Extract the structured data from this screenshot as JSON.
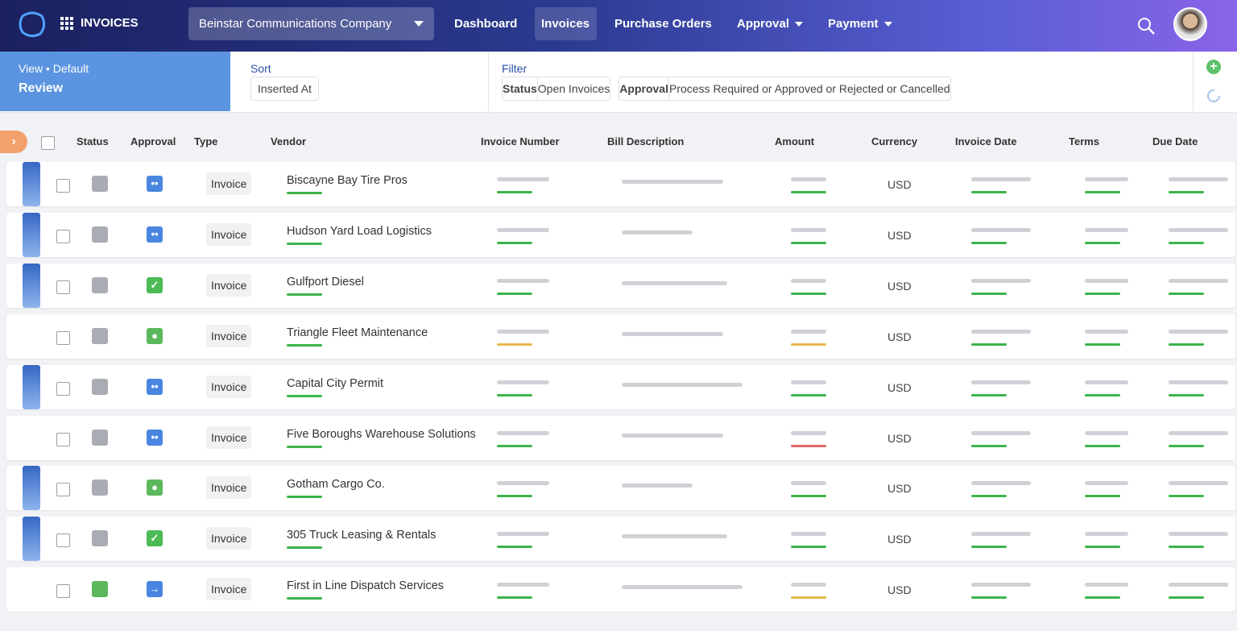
{
  "nav": {
    "app_title": "INVOICES",
    "company": "Beinstar Communications Company",
    "items": [
      "Dashboard",
      "Invoices",
      "Purchase Orders",
      "Approval",
      "Payment"
    ]
  },
  "toolbar": {
    "view_label": "View • Default",
    "view_name": "Review",
    "sort_label": "Sort",
    "sort_value": "Inserted At",
    "filter_label": "Filter",
    "filters": [
      {
        "name": "Status",
        "value": "Open Invoices"
      },
      {
        "name": "Approval",
        "value": "Process Required or Approved or Rejected or Cancelled"
      }
    ]
  },
  "table": {
    "columns": [
      "Status",
      "Approval",
      "Type",
      "Vendor",
      "Invoice Number",
      "Bill Description",
      "Amount",
      "Currency",
      "Invoice Date",
      "Terms",
      "Due Date"
    ],
    "rows": [
      {
        "type": "Invoice",
        "vendor": "Biscayne Bay Tire Pros",
        "currency": "USD"
      },
      {
        "type": "Invoice",
        "vendor": "Hudson Yard Load Logistics",
        "currency": "USD"
      },
      {
        "type": "Invoice",
        "vendor": "Gulfport Diesel",
        "currency": "USD"
      },
      {
        "type": "Invoice",
        "vendor": "Triangle Fleet Maintenance",
        "currency": "USD"
      },
      {
        "type": "Invoice",
        "vendor": "Capital City Permit",
        "currency": "USD"
      },
      {
        "type": "Invoice",
        "vendor": "Five Boroughs Warehouse Solutions",
        "currency": "USD"
      },
      {
        "type": "Invoice",
        "vendor": "Gotham Cargo Co.",
        "currency": "USD"
      },
      {
        "type": "Invoice",
        "vendor": "305 Truck Leasing & Rentals",
        "currency": "USD"
      },
      {
        "type": "Invoice",
        "vendor": "First in Line Dispatch Services",
        "currency": "USD"
      }
    ]
  }
}
